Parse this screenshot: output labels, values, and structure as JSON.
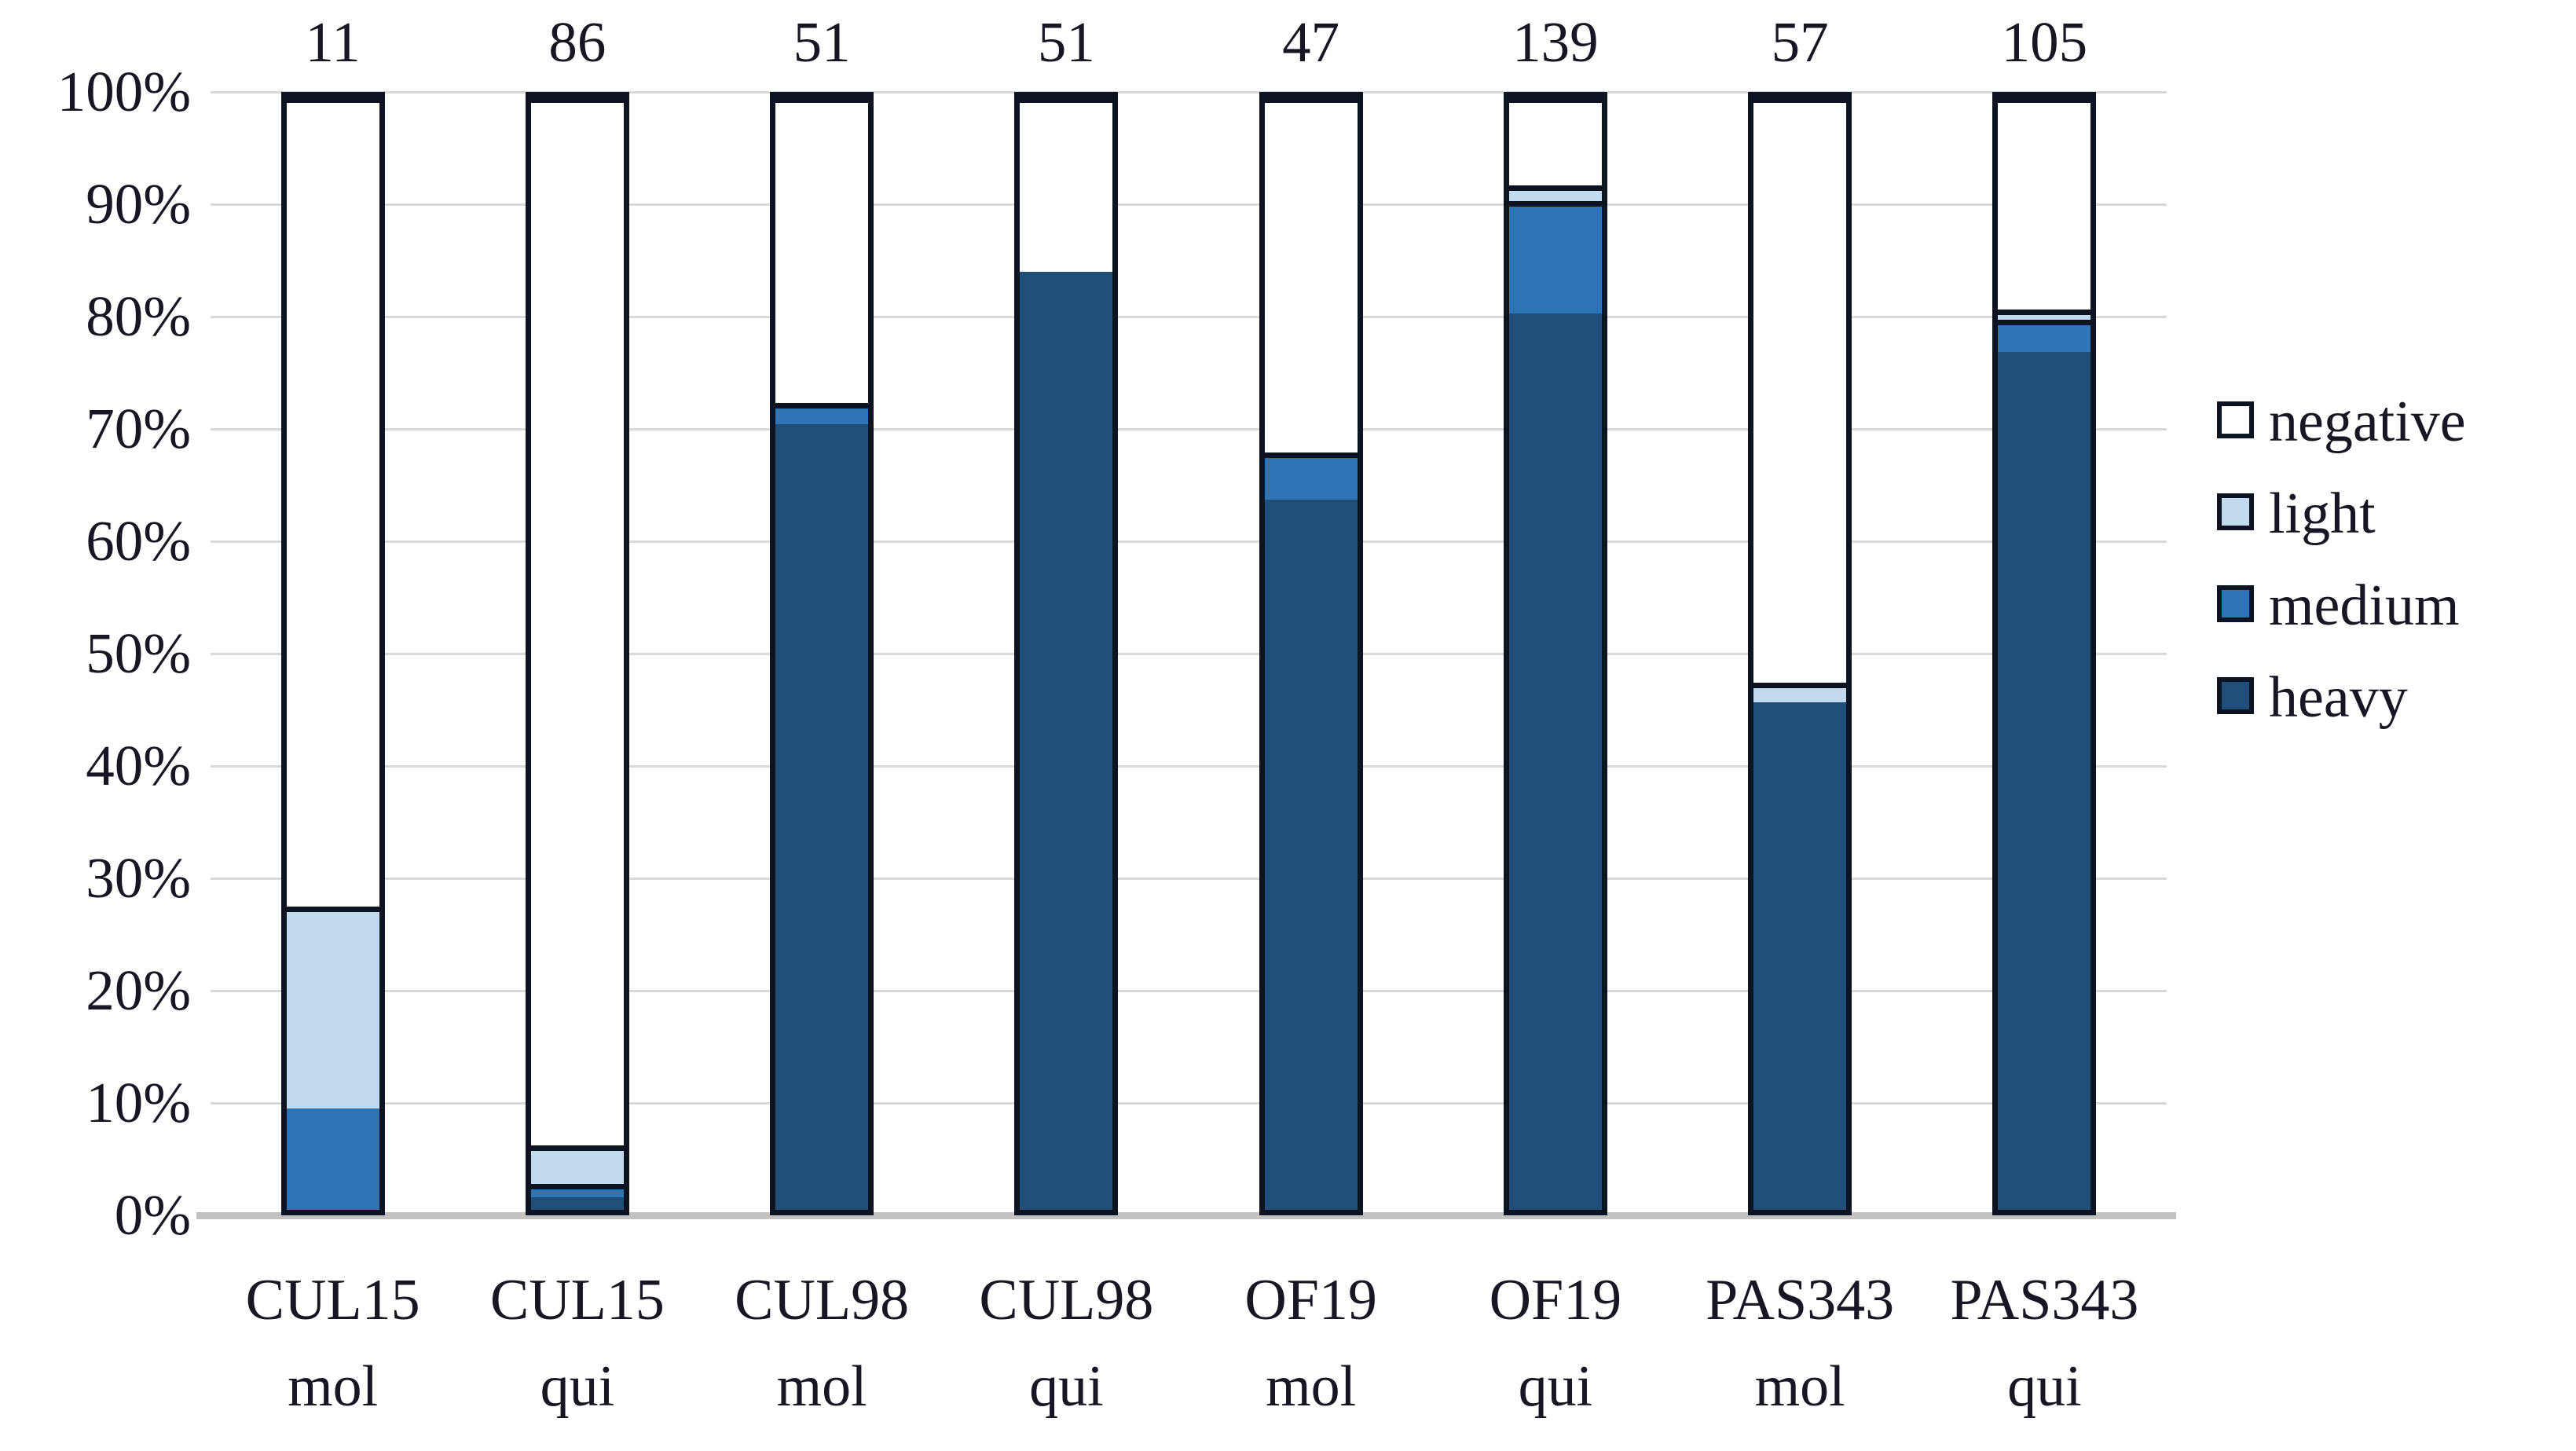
{
  "chart_data": {
    "type": "bar",
    "stacked": true,
    "percent_axis": true,
    "title": "",
    "xlabel": "",
    "ylabel": "",
    "ylim": [
      0,
      100
    ],
    "grid": true,
    "y_ticks": [
      "0%",
      "10%",
      "20%",
      "30%",
      "40%",
      "50%",
      "60%",
      "70%",
      "80%",
      "90%",
      "100%"
    ],
    "categories": [
      {
        "line1": "CUL15",
        "line2": "mol",
        "total": 11
      },
      {
        "line1": "CUL15",
        "line2": "qui",
        "total": 86
      },
      {
        "line1": "CUL98",
        "line2": "mol",
        "total": 51
      },
      {
        "line1": "CUL98",
        "line2": "qui",
        "total": 51
      },
      {
        "line1": "OF19",
        "line2": "mol",
        "total": 47
      },
      {
        "line1": "OF19",
        "line2": "qui",
        "total": 139
      },
      {
        "line1": "PAS343",
        "line2": "mol",
        "total": 57
      },
      {
        "line1": "PAS343",
        "line2": "qui",
        "total": 105
      }
    ],
    "bar_top_labels": [
      "11",
      "86",
      "51",
      "51",
      "47",
      "139",
      "57",
      "105"
    ],
    "series": [
      {
        "name": "heavy",
        "color": "#1f4e79",
        "counts": [
          0,
          1,
          36,
          43,
          30,
          112,
          26,
          81
        ],
        "values_pct": [
          0.0,
          1.2,
          70.6,
          84.3,
          63.8,
          80.6,
          45.6,
          77.1
        ]
      },
      {
        "name": "medium",
        "color": "#2e75b6",
        "counts": [
          1,
          1,
          1,
          0,
          2,
          14,
          0,
          3
        ],
        "values_pct": [
          9.1,
          1.2,
          2.0,
          0.0,
          4.3,
          10.1,
          0.0,
          2.9
        ]
      },
      {
        "name": "light",
        "color": "#c3d9ed",
        "counts": [
          2,
          3,
          0,
          0,
          0,
          2,
          1,
          1
        ],
        "values_pct": [
          18.2,
          3.5,
          0.0,
          0.0,
          0.0,
          1.4,
          1.8,
          1.0
        ]
      },
      {
        "name": "negative",
        "color": "#ffffff",
        "counts": [
          8,
          81,
          14,
          8,
          15,
          11,
          30,
          20
        ],
        "values_pct": [
          72.7,
          94.2,
          27.5,
          15.7,
          31.9,
          7.9,
          52.6,
          19.0
        ]
      }
    ],
    "stack_order_bottom_to_top": [
      "heavy",
      "medium",
      "light",
      "negative"
    ],
    "legend": {
      "position": "right",
      "items": [
        "negative",
        "light",
        "medium",
        "heavy"
      ]
    }
  },
  "colors": {
    "heavy": "#1f4e79",
    "medium": "#2e75b6",
    "light": "#c3d9ed",
    "negative": "#ffffff",
    "outline": "#0d1321",
    "gridline": "#d9d9d9",
    "axis_line": "#c2c2c2",
    "text": "#161625"
  }
}
